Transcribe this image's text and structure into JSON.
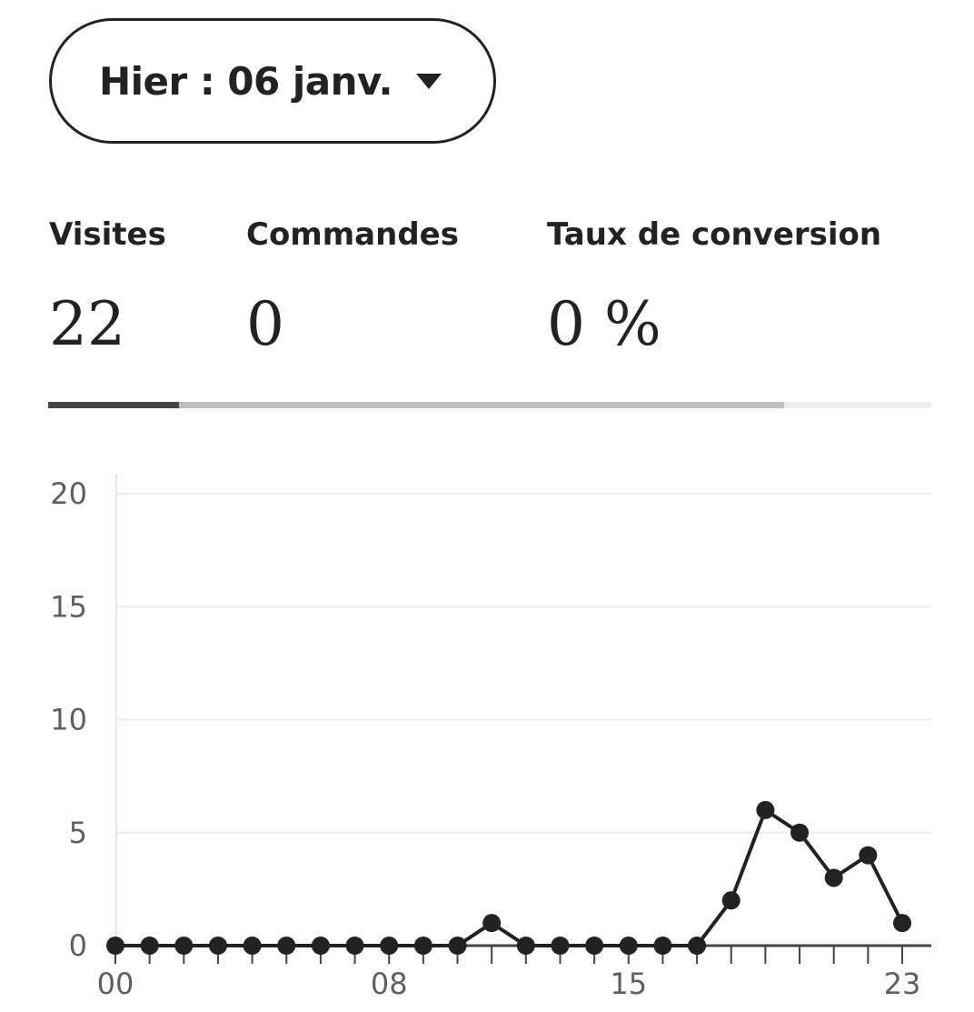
{
  "date_selector": {
    "label": "Hier : 06 janv.",
    "icon": "caret-down-icon"
  },
  "metrics": [
    {
      "label": "Visites",
      "value": "22"
    },
    {
      "label": "Commandes",
      "value": "0"
    },
    {
      "label": "Taux de conversion",
      "value": "0 %"
    }
  ],
  "tabs_indicator": {
    "selected_fraction": 0.148,
    "loaded_fraction": 0.833
  },
  "colors": {
    "line": "#222222",
    "grid": "#ebebeb",
    "axis": "#444444",
    "tick_label": "#5f5f5f",
    "indicator_active": "#444444",
    "indicator_track": "#bdbdbd"
  },
  "chart_data": {
    "type": "line",
    "x": [
      0,
      1,
      2,
      3,
      4,
      5,
      6,
      7,
      8,
      9,
      10,
      11,
      12,
      13,
      14,
      15,
      16,
      17,
      18,
      19,
      20,
      21,
      22,
      23
    ],
    "series": [
      {
        "values": [
          0,
          0,
          0,
          0,
          0,
          0,
          0,
          0,
          0,
          0,
          0,
          1,
          0,
          0,
          0,
          0,
          0,
          0,
          2,
          6,
          5,
          3,
          4,
          1
        ]
      }
    ],
    "xtick_labels": [
      {
        "x": 0,
        "label": "00"
      },
      {
        "x": 8,
        "label": "08"
      },
      {
        "x": 15,
        "label": "15"
      },
      {
        "x": 23,
        "label": "23"
      }
    ],
    "yticks": [
      0,
      5,
      10,
      15,
      20
    ],
    "ylim": [
      0,
      20
    ],
    "xlim": [
      0,
      23
    ],
    "grid": true,
    "title": "",
    "xlabel": "",
    "ylabel": ""
  }
}
